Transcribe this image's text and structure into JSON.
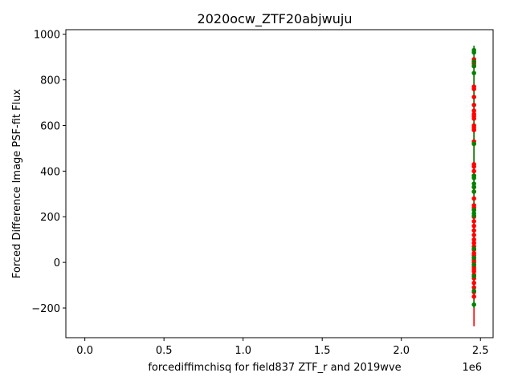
{
  "chart_data": {
    "type": "scatter",
    "title": "2020ocw_ZTF20abjwuju",
    "xlabel": "forcediffimchisq for field837 ZTF_r and 2019wve",
    "ylabel": "Forced Difference Image PSF-fit Flux",
    "x_offset_label": "1e6",
    "xlim": [
      -120000,
      2580000
    ],
    "ylim": [
      -330,
      1020
    ],
    "x_ticks": [
      0.0,
      0.5,
      1.0,
      1.5,
      2.0,
      2.5
    ],
    "x_tick_labels": [
      "0.0",
      "0.5",
      "1.0",
      "1.5",
      "2.0",
      "2.5"
    ],
    "y_ticks": [
      -200,
      0,
      200,
      400,
      600,
      800,
      1000
    ],
    "y_tick_labels": [
      "−200",
      "0",
      "200",
      "400",
      "600",
      "800",
      "1000"
    ],
    "grid": false,
    "colors": {
      "red": "#ff0000",
      "green": "#008000"
    },
    "series": [
      {
        "color": "red",
        "x_value": 2459000,
        "error_bar": [
          -280,
          900
        ],
        "values": [
          890,
          880,
          870,
          860,
          770,
          760,
          725,
          690,
          665,
          650,
          640,
          630,
          600,
          590,
          580,
          530,
          520,
          430,
          420,
          400,
          380,
          330,
          310,
          280,
          250,
          240,
          230,
          200,
          180,
          160,
          140,
          120,
          100,
          85,
          70,
          55,
          40,
          30,
          20,
          10,
          0,
          -10,
          -20,
          -30,
          -40,
          -55,
          -70,
          -90,
          -110,
          -130,
          -150
        ]
      },
      {
        "color": "green",
        "x_value": 2459000,
        "error_bar": [
          -200,
          950
        ],
        "values": [
          930,
          920,
          880,
          860,
          830,
          520,
          380,
          370,
          345,
          330,
          310,
          230,
          215,
          205,
          60,
          20,
          -10,
          -60,
          -125,
          -185
        ]
      }
    ]
  }
}
